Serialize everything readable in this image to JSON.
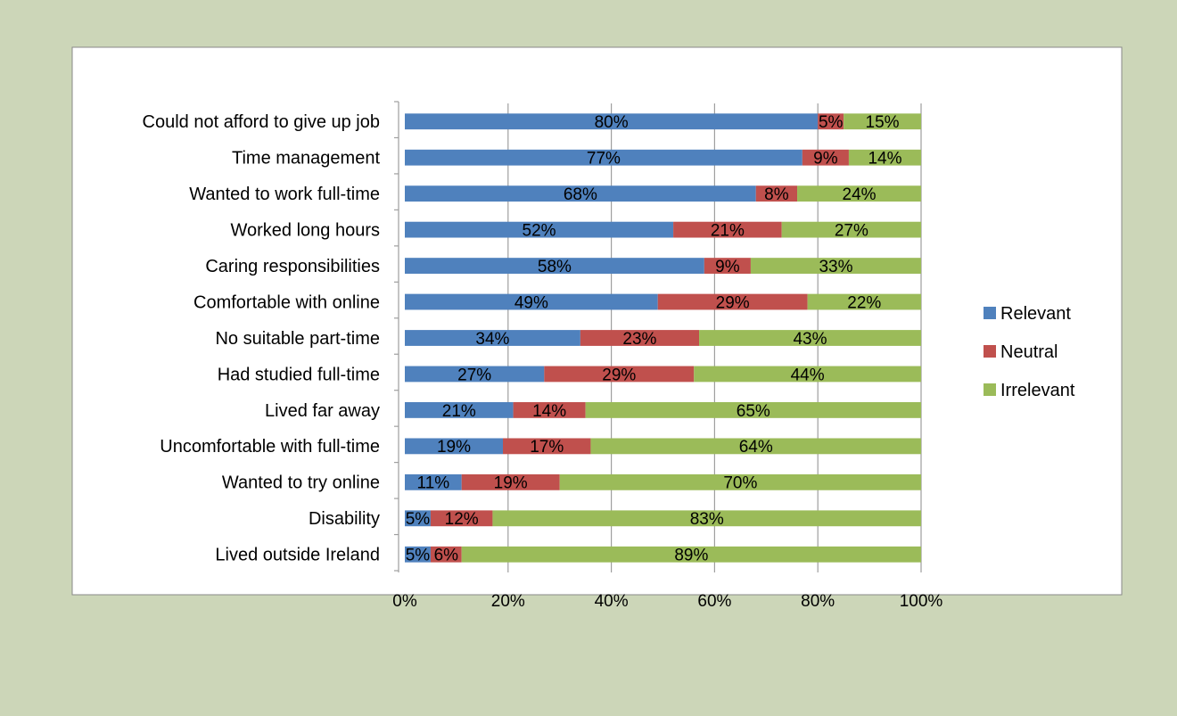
{
  "colors": {
    "background": "#ccd6b8",
    "panel": "#ffffff",
    "panel_border": "#888888",
    "grid": "#9e9e9e",
    "text": "#000000"
  },
  "chart_data": {
    "type": "bar",
    "orientation": "horizontal",
    "stacked": true,
    "percent_stacked": true,
    "categories": [
      "Could not afford to give up job",
      "Time management",
      "Wanted to work full-time",
      "Worked long hours",
      "Caring responsibilities",
      "Comfortable with online",
      "No suitable part-time",
      "Had studied full-time",
      "Lived far away",
      "Uncomfortable with full-time",
      "Wanted to try online",
      "Disability",
      "Lived outside Ireland"
    ],
    "series": [
      {
        "name": "Relevant",
        "color": "#4f81bd",
        "values": [
          80,
          77,
          68,
          52,
          58,
          49,
          34,
          27,
          21,
          19,
          11,
          5,
          5
        ],
        "labels": [
          "80%",
          "77%",
          "68%",
          "52%",
          "58%",
          "49%",
          "34%",
          "27%",
          "21%",
          "19%",
          "11%",
          "5%",
          "5%"
        ]
      },
      {
        "name": "Neutral",
        "color": "#c0504d",
        "values": [
          5,
          9,
          8,
          21,
          9,
          29,
          23,
          29,
          14,
          17,
          19,
          12,
          6
        ],
        "labels": [
          "5%",
          "9%",
          "8%",
          "21%",
          "9%",
          "29%",
          "23%",
          "29%",
          "14%",
          "17%",
          "19%",
          "12%",
          "6%"
        ]
      },
      {
        "name": "Irrelevant",
        "color": "#9bbb59",
        "values": [
          15,
          14,
          24,
          27,
          33,
          22,
          43,
          44,
          65,
          64,
          70,
          83,
          89
        ],
        "labels": [
          "15%",
          "14%",
          "24%",
          "27%",
          "33%",
          "22%",
          "43%",
          "44%",
          "65%",
          "64%",
          "70%",
          "83%",
          "89%"
        ]
      }
    ],
    "xlim": [
      0,
      100
    ],
    "xticks": [
      "0%",
      "20%",
      "40%",
      "60%",
      "80%",
      "100%"
    ],
    "grid": "vertical",
    "legend_position": "right",
    "title": "",
    "xlabel": "",
    "ylabel": ""
  }
}
